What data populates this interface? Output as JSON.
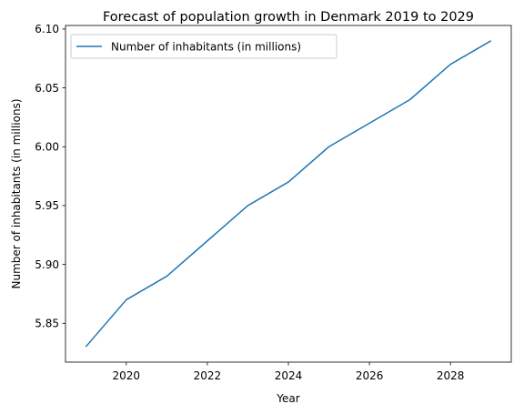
{
  "chart_data": {
    "type": "line",
    "title": "Forecast of population growth in Denmark 2019 to 2029",
    "xlabel": "Year",
    "ylabel": "Number of inhabitants (in millions)",
    "x": [
      2019,
      2020,
      2021,
      2022,
      2023,
      2024,
      2025,
      2026,
      2027,
      2028,
      2029
    ],
    "series": [
      {
        "name": "Number of inhabitants (in millions)",
        "color": "#1f77b4",
        "values": [
          5.83,
          5.87,
          5.89,
          5.92,
          5.95,
          5.97,
          6.0,
          6.02,
          6.04,
          6.07,
          6.09
        ]
      }
    ],
    "xlim": [
      2018.5,
      2029.5
    ],
    "ylim": [
      5.817,
      6.103
    ],
    "xticks": [
      "2020",
      "2022",
      "2024",
      "2026",
      "2028"
    ],
    "yticks": [
      "5.85",
      "5.90",
      "5.95",
      "6.00",
      "6.05",
      "6.10"
    ],
    "grid": false,
    "legend_position": "upper-left"
  }
}
